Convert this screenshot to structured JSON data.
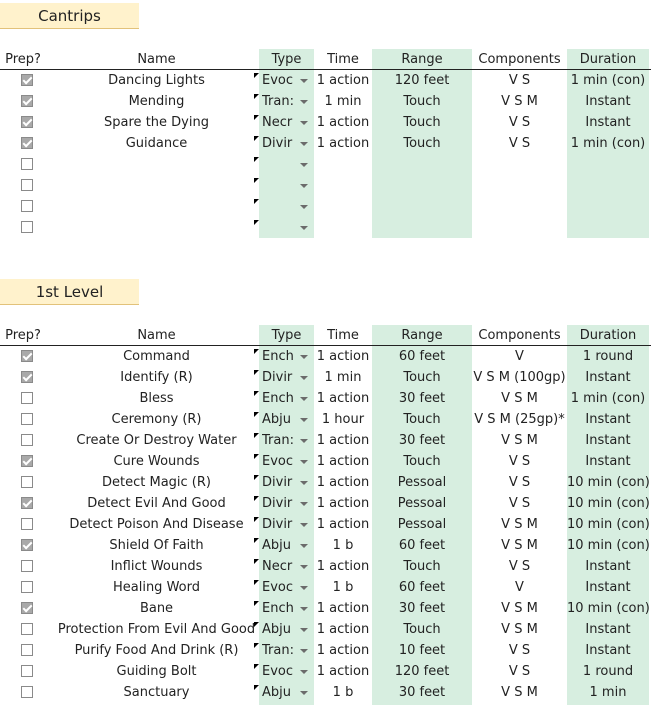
{
  "headers": {
    "prep": "Prep?",
    "name": "Name",
    "type": "Type",
    "time": "Time",
    "range": "Range",
    "components": "Components",
    "duration": "Duration"
  },
  "cantrips": {
    "title": "Cantrips",
    "rows": [
      {
        "prep": true,
        "name": "Dancing Lights",
        "type": "Evoc",
        "time": "1 action",
        "range": "120 feet",
        "components": "V S",
        "duration": "1 min (con)"
      },
      {
        "prep": true,
        "name": "Mending",
        "type": "Tran:",
        "time": "1 min",
        "range": "Touch",
        "components": "V S M",
        "duration": "Instant"
      },
      {
        "prep": true,
        "name": "Spare the Dying",
        "type": "Necr",
        "time": "1 action",
        "range": "Touch",
        "components": "V S",
        "duration": "Instant"
      },
      {
        "prep": true,
        "name": "Guidance",
        "type": "Divir",
        "time": "1 action",
        "range": "Touch",
        "components": "V S",
        "duration": "1 min (con)"
      },
      {
        "prep": false,
        "name": "",
        "type": "",
        "time": "",
        "range": "",
        "components": "",
        "duration": ""
      },
      {
        "prep": false,
        "name": "",
        "type": "",
        "time": "",
        "range": "",
        "components": "",
        "duration": ""
      },
      {
        "prep": false,
        "name": "",
        "type": "",
        "time": "",
        "range": "",
        "components": "",
        "duration": ""
      },
      {
        "prep": false,
        "name": "",
        "type": "",
        "time": "",
        "range": "",
        "components": "",
        "duration": ""
      }
    ]
  },
  "level1": {
    "title": "1st Level",
    "rows": [
      {
        "prep": true,
        "name": "Command",
        "type": "Ench",
        "time": "1 action",
        "range": "60 feet",
        "components": "V",
        "duration": "1 round"
      },
      {
        "prep": true,
        "name": "Identify (R)",
        "type": "Divir",
        "time": "1 min",
        "range": "Touch",
        "components": "V S M (100gp)",
        "duration": "Instant"
      },
      {
        "prep": false,
        "name": "Bless",
        "type": "Ench",
        "time": "1 action",
        "range": "30 feet",
        "components": "V S M",
        "duration": "1 min (con)"
      },
      {
        "prep": false,
        "name": "Ceremony (R)",
        "type": "Abju",
        "time": "1 hour",
        "range": "Touch",
        "components": "V S M (25gp)*",
        "duration": "Instant"
      },
      {
        "prep": false,
        "name": "Create Or Destroy Water",
        "type": "Tran:",
        "time": "1 action",
        "range": "30 feet",
        "components": "V S M",
        "duration": "Instant"
      },
      {
        "prep": true,
        "name": "Cure Wounds",
        "type": "Evoc",
        "time": "1 action",
        "range": "Touch",
        "components": "V S",
        "duration": "Instant"
      },
      {
        "prep": false,
        "name": "Detect Magic (R)",
        "type": "Divir",
        "time": "1 action",
        "range": "Pessoal",
        "components": "V S",
        "duration": "10 min (con)"
      },
      {
        "prep": true,
        "name": "Detect Evil And Good",
        "type": "Divir",
        "time": "1 action",
        "range": "Pessoal",
        "components": "V S",
        "duration": "10 min (con)"
      },
      {
        "prep": false,
        "name": "Detect Poison And Disease",
        "type": "Divir",
        "time": "1 action",
        "range": "Pessoal",
        "components": "V S M",
        "duration": "10 min (con)"
      },
      {
        "prep": true,
        "name": "Shield Of Faith",
        "type": "Abju",
        "time": "1 b",
        "range": "60 feet",
        "components": "V S M",
        "duration": "10 min (con)"
      },
      {
        "prep": false,
        "name": "Inflict Wounds",
        "type": "Necr",
        "time": "1 action",
        "range": "Touch",
        "components": "V S",
        "duration": "Instant"
      },
      {
        "prep": false,
        "name": "Healing Word",
        "type": "Evoc",
        "time": "1 b",
        "range": "60 feet",
        "components": "V",
        "duration": "Instant"
      },
      {
        "prep": true,
        "name": "Bane",
        "type": "Ench",
        "time": "1 action",
        "range": "30 feet",
        "components": "V S M",
        "duration": "10 min (con)"
      },
      {
        "prep": false,
        "name": "Protection From Evil And Good",
        "type": "Abju",
        "time": "1 action",
        "range": "Touch",
        "components": "V S M",
        "duration": "Instant"
      },
      {
        "prep": false,
        "name": "Purify Food And Drink (R)",
        "type": "Tran:",
        "time": "1 action",
        "range": "10 feet",
        "components": "V S",
        "duration": "Instant"
      },
      {
        "prep": false,
        "name": "Guiding Bolt",
        "type": "Evoc",
        "time": "1 action",
        "range": "120 feet",
        "components": "V S",
        "duration": "1 round"
      },
      {
        "prep": false,
        "name": "Sanctuary",
        "type": "Abju",
        "time": "1 b",
        "range": "30 feet",
        "components": "V S M",
        "duration": "1 min"
      }
    ]
  },
  "icons": {
    "checkbox": "checkbox-icon",
    "dropdown": "dropdown-arrow-icon",
    "note": "cell-note-marker-icon"
  },
  "colors": {
    "title_bg": "#fff2cc",
    "green_col": "#d7eee0",
    "checkbox_checked": "#a9a9a9"
  }
}
